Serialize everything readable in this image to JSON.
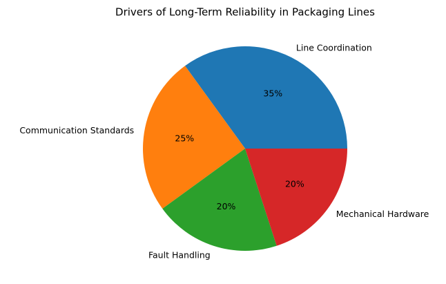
{
  "chart_data": {
    "type": "pie",
    "title": "Drivers of Long-Term Reliability in Packaging Lines",
    "categories": [
      "Line Coordination",
      "Communication Standards",
      "Fault Handling",
      "Mechanical Hardware"
    ],
    "values": [
      35,
      25,
      20,
      20
    ],
    "value_labels": [
      "35%",
      "25%",
      "20%",
      "20%"
    ],
    "colors": [
      "#1f77b4",
      "#ff7f0e",
      "#2ca02c",
      "#d62728"
    ]
  }
}
